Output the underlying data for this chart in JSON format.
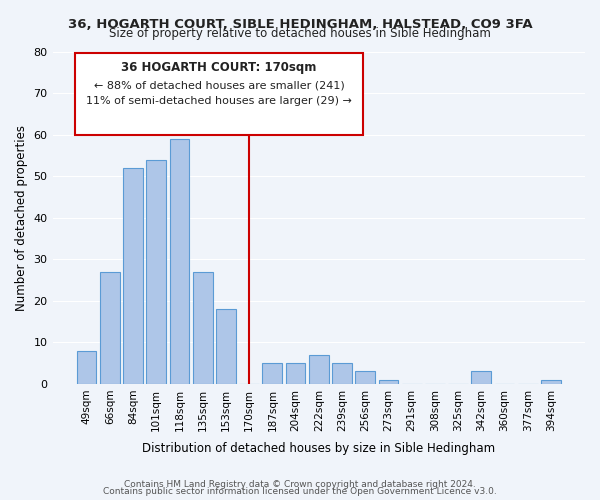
{
  "title_line1": "36, HOGARTH COURT, SIBLE HEDINGHAM, HALSTEAD, CO9 3FA",
  "title_line2": "Size of property relative to detached houses in Sible Hedingham",
  "xlabel": "Distribution of detached houses by size in Sible Hedingham",
  "ylabel": "Number of detached properties",
  "bar_labels": [
    "49sqm",
    "66sqm",
    "84sqm",
    "101sqm",
    "118sqm",
    "135sqm",
    "153sqm",
    "170sqm",
    "187sqm",
    "204sqm",
    "222sqm",
    "239sqm",
    "256sqm",
    "273sqm",
    "291sqm",
    "308sqm",
    "325sqm",
    "342sqm",
    "360sqm",
    "377sqm",
    "394sqm"
  ],
  "bar_values": [
    8,
    27,
    52,
    54,
    59,
    27,
    18,
    0,
    5,
    5,
    7,
    5,
    3,
    1,
    0,
    0,
    0,
    3,
    0,
    0,
    1
  ],
  "bar_color": "#aec6e8",
  "bar_edge_color": "#5b9bd5",
  "vline_x": 7,
  "vline_color": "#cc0000",
  "annotation_title": "36 HOGARTH COURT: 170sqm",
  "annotation_line1": "← 88% of detached houses are smaller (241)",
  "annotation_line2": "11% of semi-detached houses are larger (29) →",
  "annotation_box_color": "#ffffff",
  "annotation_box_edge": "#cc0000",
  "ylim": [
    0,
    80
  ],
  "yticks": [
    0,
    10,
    20,
    30,
    40,
    50,
    60,
    70,
    80
  ],
  "footer_line1": "Contains HM Land Registry data © Crown copyright and database right 2024.",
  "footer_line2": "Contains public sector information licensed under the Open Government Licence v3.0.",
  "background_color": "#f0f4fa",
  "grid_color": "#ffffff"
}
